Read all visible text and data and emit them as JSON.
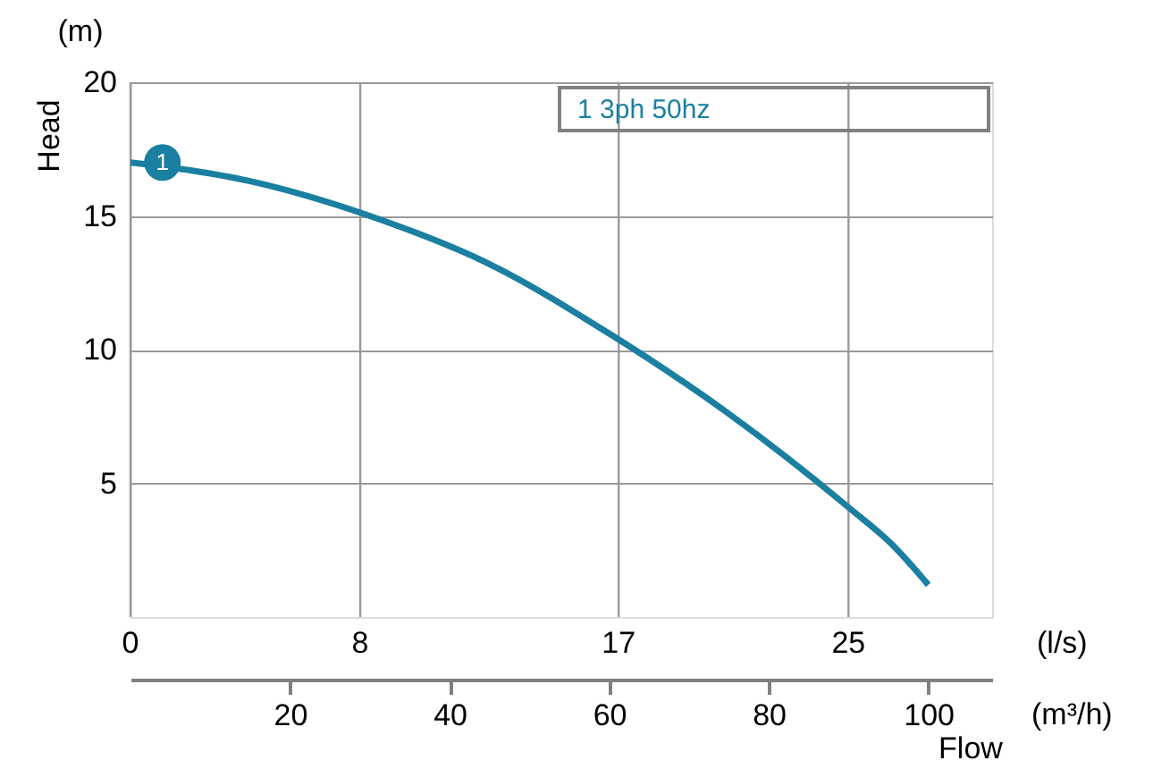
{
  "chart_data": {
    "type": "line",
    "x": [
      0,
      15,
      30,
      45,
      60,
      75,
      90,
      95.5,
      100
    ],
    "series": [
      {
        "name": "1 3ph 50hz",
        "color": "#1a7fa0",
        "values": [
          17,
          16.3,
          15,
          13.2,
          10.6,
          7.6,
          4.1,
          2.7,
          1.2
        ]
      }
    ],
    "xlim": [
      0,
      108
    ],
    "xticks": [
      20,
      40,
      60,
      80,
      100
    ],
    "x2lim": [
      0,
      30
    ],
    "x2ticks": [
      0,
      8,
      17,
      25
    ],
    "ylim": [
      0,
      20
    ],
    "yticks": [
      5,
      10,
      15,
      20
    ],
    "xlabel": "(m³/h)",
    "x2label": "(l/s)",
    "ylabel": "Head",
    "annotations": [
      "Flow",
      "(m)",
      {
        "text": "1",
        "x": 4,
        "y": 17
      }
    ],
    "grid": true
  }
}
